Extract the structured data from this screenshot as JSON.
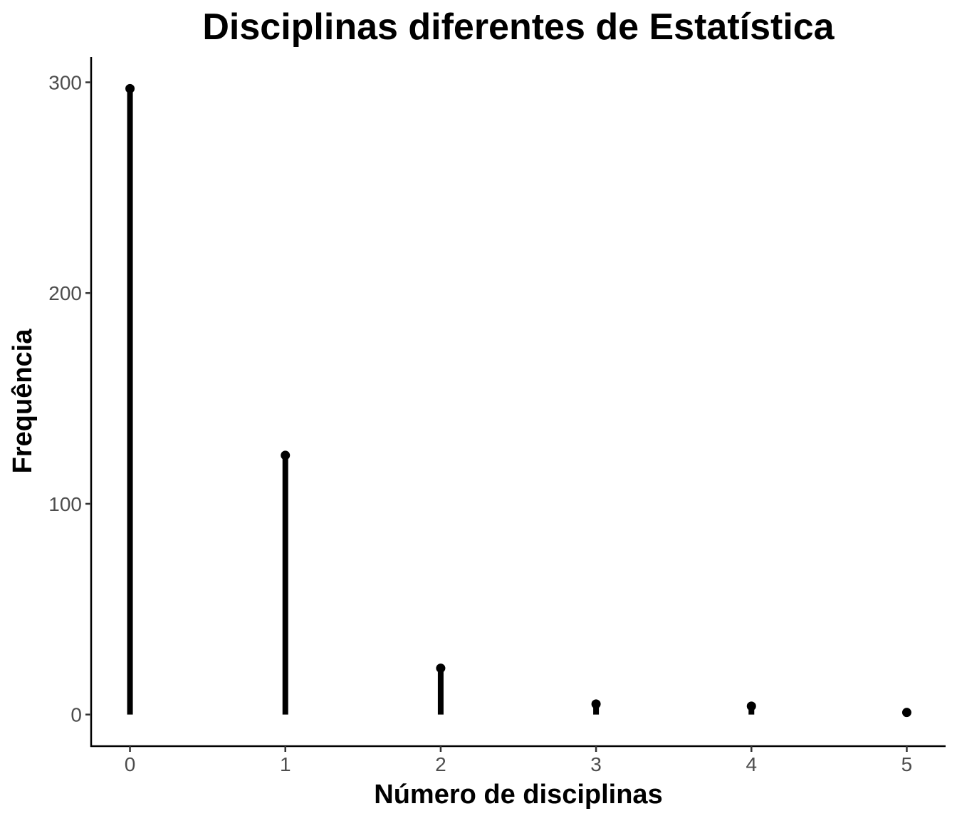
{
  "chart_data": {
    "type": "lollipop",
    "title": "Disciplinas diferentes de Estatística",
    "xlabel": "Número de disciplinas",
    "ylabel": "Frequência",
    "x": [
      0,
      1,
      2,
      3,
      4,
      5
    ],
    "values": [
      297,
      123,
      22,
      5,
      4,
      1
    ],
    "x_ticks": [
      "0",
      "1",
      "2",
      "3",
      "4",
      "5"
    ],
    "y_ticks": [
      "0",
      "100",
      "200",
      "300"
    ],
    "xlim": [
      -0.25,
      5.25
    ],
    "ylim": [
      -15,
      312
    ],
    "grid": false,
    "legend": "none",
    "colors": {
      "stem": "#000000",
      "point": "#000000",
      "axis": "#000000",
      "tick_label": "#4d4d4d"
    }
  }
}
